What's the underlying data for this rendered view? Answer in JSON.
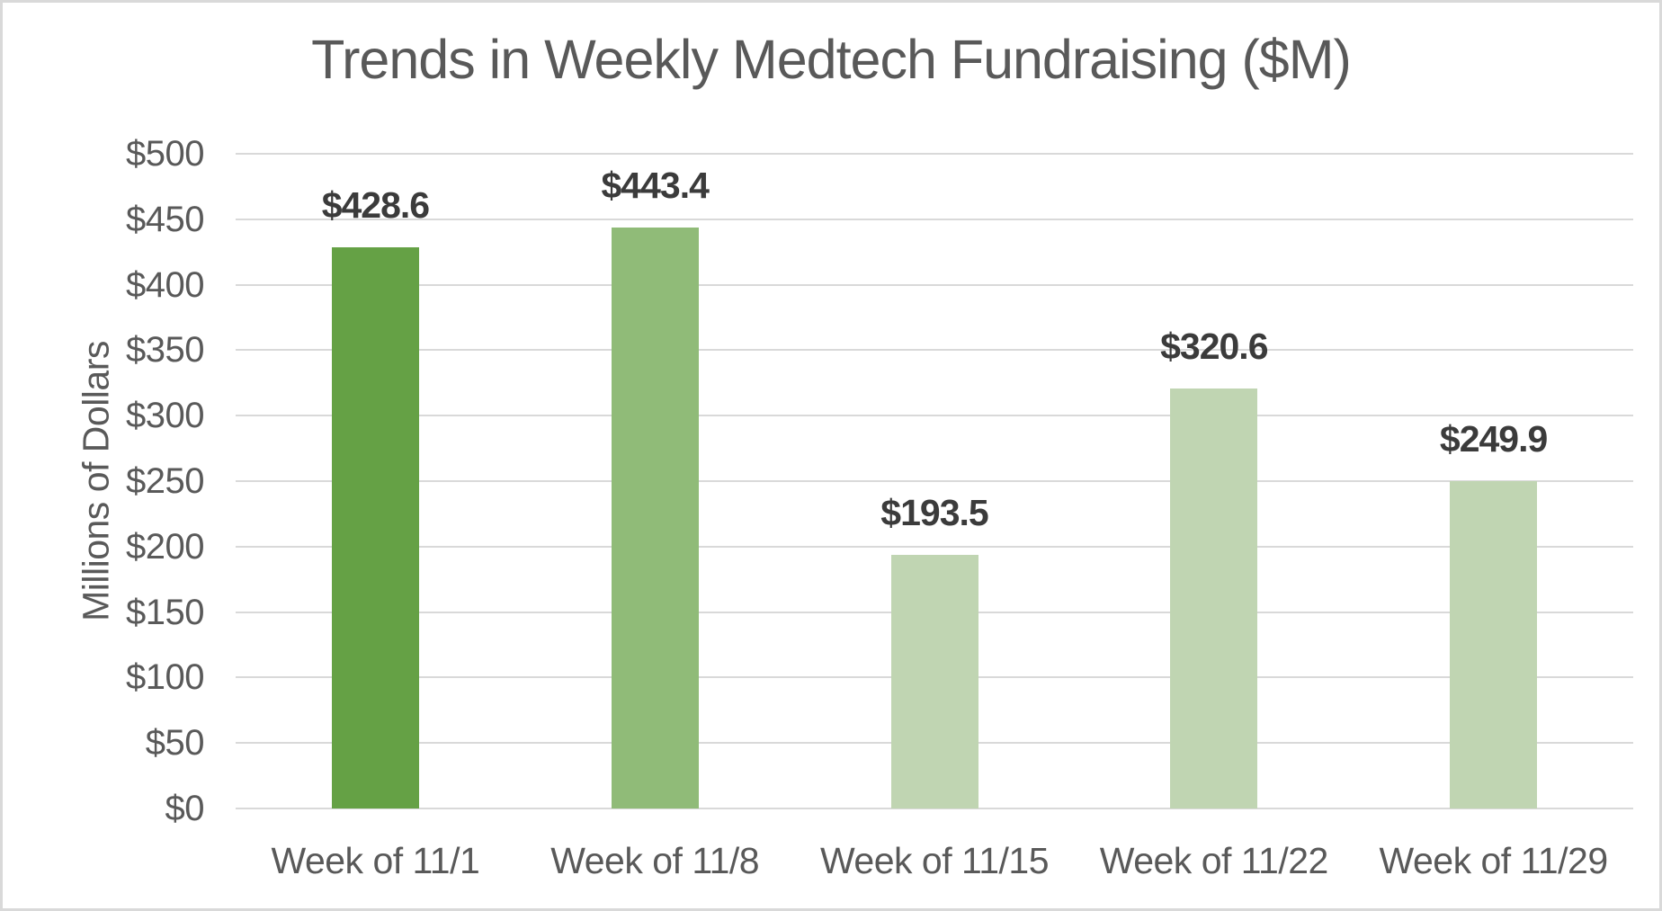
{
  "chart_data": {
    "type": "bar",
    "title": "Trends in Weekly Medtech Fundraising ($M)",
    "categories": [
      "Week of 11/1",
      "Week of 11/8",
      "Week of 11/15",
      "Week of 11/22",
      "Week of 11/29"
    ],
    "values": [
      428.6,
      443.4,
      193.5,
      320.6,
      249.9
    ],
    "data_labels": [
      "$428.6",
      "$443.4",
      "$193.5",
      "$320.6",
      "$249.9"
    ],
    "xlabel": "",
    "ylabel": "Millions of Dollars",
    "ylim": [
      0,
      500
    ],
    "ytick_step": 50,
    "ytick_labels": [
      "$0",
      "$50",
      "$100",
      "$150",
      "$200",
      "$250",
      "$300",
      "$350",
      "$400",
      "$450",
      "$500"
    ],
    "grid": true,
    "legend": false,
    "data_label_position": "outside-end",
    "bar_colors": [
      "#65a145",
      "#90bb78",
      "#c0d5b2",
      "#c0d5b2",
      "#c0d5b2"
    ],
    "colors": {
      "title_text": "#595959",
      "axis_text": "#595959",
      "data_label_text": "#3b3b3b",
      "gridline": "#d9d9d9",
      "frame_border": "#d9d9d9",
      "background": "#ffffff"
    }
  }
}
